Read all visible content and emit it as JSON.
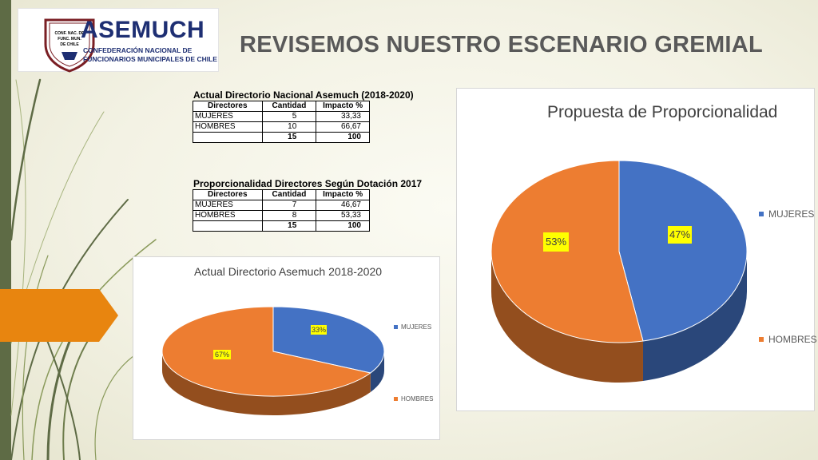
{
  "header": {
    "title": "REVISEMOS NUESTRO ESCENARIO GREMIAL",
    "logo": {
      "name": "ASEMUCH",
      "subtitle_line1": "CONFEDERACIÓN NACIONAL DE",
      "subtitle_line2": "FUNCIONARIOS MUNICIPALES DE CHILE",
      "seal_text_line1": "CONF. NAC. DE",
      "seal_text_line2": "FUNC. MUN.",
      "seal_text_line3": "DE CHILE"
    }
  },
  "tables": [
    {
      "caption": "Actual Directorio Nacional Asemuch (2018-2020)",
      "headers": [
        "Directores",
        "Cantidad",
        "Impacto %"
      ],
      "rows": [
        [
          "MUJERES",
          "5",
          "33,33"
        ],
        [
          "HOMBRES",
          "10",
          "66,67"
        ]
      ],
      "total": [
        "",
        "15",
        "100"
      ]
    },
    {
      "caption": "Proporcionalidad Directores Según Dotación 2017",
      "headers": [
        "Directores",
        "Cantidad",
        "Impacto %"
      ],
      "rows": [
        [
          "MUJERES",
          "7",
          "46,67"
        ],
        [
          "HOMBRES",
          "8",
          "53,33"
        ]
      ],
      "total": [
        "",
        "15",
        "100"
      ]
    }
  ],
  "chart_data": [
    {
      "type": "pie",
      "title": "Actual Directorio Asemuch 2018-2020",
      "categories": [
        "MUJERES",
        "HOMBRES"
      ],
      "values": [
        33,
        67
      ],
      "labels": [
        "33%",
        "67%"
      ],
      "colors": [
        "#4472c4",
        "#ed7d31"
      ],
      "legend": "right",
      "three_d": true
    },
    {
      "type": "pie",
      "title": "Propuesta de Proporcionalidad",
      "categories": [
        "MUJERES",
        "HOMBRES"
      ],
      "values": [
        47,
        53
      ],
      "labels": [
        "47%",
        "53%"
      ],
      "colors": [
        "#4472c4",
        "#ed7d31"
      ],
      "legend": "right",
      "three_d": true
    }
  ],
  "colors": {
    "accent_green": "#5e6b45",
    "arrow_orange": "#e8850f",
    "logo_blue": "#1e2f73",
    "title_gray": "#595959"
  }
}
